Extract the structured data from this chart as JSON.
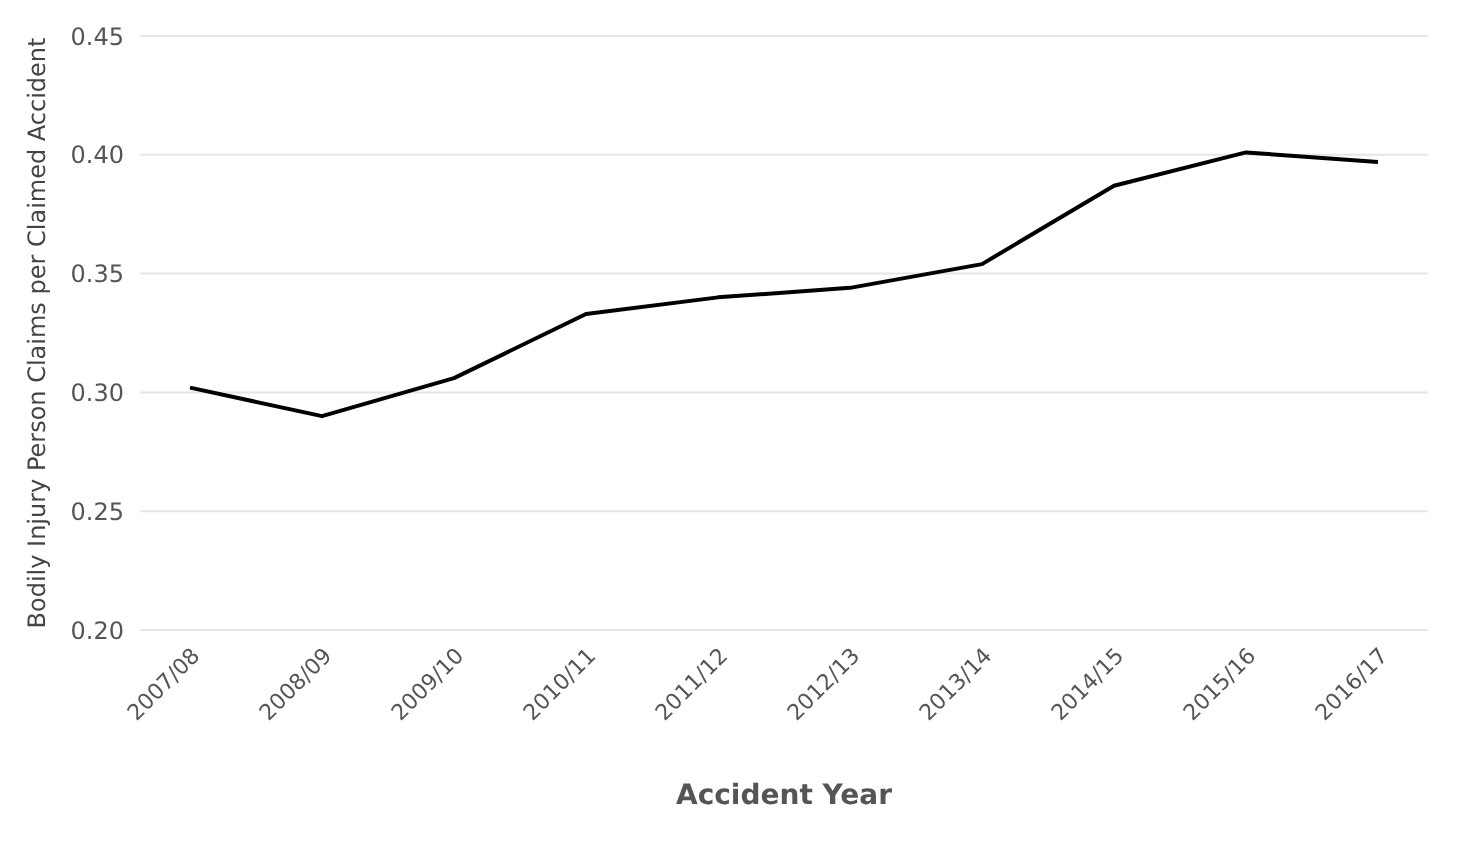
{
  "chart_data": {
    "type": "line",
    "xlabel": "Accident Year",
    "ylabel": "Bodily Injury Person Claims per Claimed Accident",
    "categories": [
      "2007/08",
      "2008/09",
      "2009/10",
      "2010/11",
      "2011/12",
      "2012/13",
      "2013/14",
      "2014/15",
      "2015/16",
      "2016/17"
    ],
    "series": [
      {
        "color": "#000000",
        "values": [
          0.302,
          0.29,
          0.306,
          0.333,
          0.34,
          0.344,
          0.354,
          0.387,
          0.401,
          0.397
        ]
      }
    ],
    "ylim": [
      0.2,
      0.45
    ],
    "yticks": [
      {
        "value": 0.2,
        "label": "0.20"
      },
      {
        "value": 0.25,
        "label": "0.25"
      },
      {
        "value": 0.3,
        "label": "0.30"
      },
      {
        "value": 0.35,
        "label": "0.35"
      },
      {
        "value": 0.4,
        "label": "0.40"
      },
      {
        "value": 0.45,
        "label": "0.45"
      }
    ],
    "grid": "y",
    "legend": false,
    "marker": "none",
    "line_style": "solid"
  }
}
